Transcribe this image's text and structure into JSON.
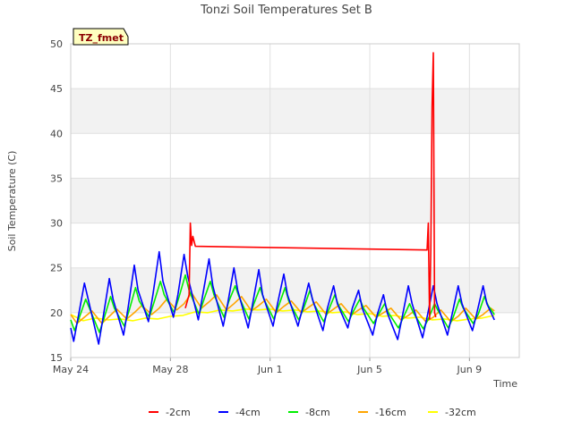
{
  "chart_data": {
    "type": "line",
    "title": "Tonzi Soil Temperatures Set B",
    "xlabel": "Time",
    "ylabel": "Soil Temperature (C)",
    "ylim": [
      15,
      50
    ],
    "yticks": [
      15,
      20,
      25,
      30,
      35,
      40,
      45,
      50
    ],
    "xlim": [
      "2024-05-24",
      "2024-06-11"
    ],
    "xticks": [
      {
        "label": "May 24",
        "day": 0
      },
      {
        "label": "May 28",
        "day": 4
      },
      {
        "label": "Jun 1",
        "day": 8
      },
      {
        "label": "Jun 5",
        "day": 12
      },
      {
        "label": "Jun 9",
        "day": 16
      }
    ],
    "x_range_days": [
      0,
      18
    ],
    "background_bands": true,
    "legend_position": "bottom",
    "site_label": "TZ_fmet",
    "series": [
      {
        "name": "-2cm",
        "color": "#ff0000",
        "x": [
          0,
          0.5,
          1.0,
          1.5,
          2.0,
          2.5,
          3.0,
          3.5,
          4.0,
          4.6,
          4.75,
          4.8,
          4.85,
          4.9,
          5.0,
          14.3,
          14.35,
          14.4,
          14.45,
          14.5,
          14.55,
          14.6,
          14.65
        ],
        "y": [
          null,
          null,
          null,
          null,
          null,
          null,
          null,
          null,
          null,
          20.5,
          22.0,
          30.0,
          27.5,
          28.5,
          27.4,
          27.0,
          30.0,
          19.3,
          27.0,
          43.0,
          49.0,
          20.0,
          19.5
        ]
      },
      {
        "name": "-4cm",
        "color": "#0000ff",
        "x": [
          0.0,
          0.12,
          0.3,
          0.55,
          0.7,
          1.12,
          1.3,
          1.55,
          1.7,
          2.12,
          2.3,
          2.55,
          2.7,
          3.12,
          3.3,
          3.55,
          3.7,
          4.12,
          4.3,
          4.55,
          4.7,
          5.12,
          5.3,
          5.55,
          5.7,
          6.12,
          6.3,
          6.55,
          6.7,
          7.12,
          7.3,
          7.55,
          7.7,
          8.12,
          8.3,
          8.55,
          8.7,
          9.12,
          9.3,
          9.55,
          9.7,
          10.12,
          10.3,
          10.55,
          10.7,
          11.12,
          11.3,
          11.55,
          11.7,
          12.12,
          12.3,
          12.55,
          12.7,
          13.12,
          13.3,
          13.55,
          13.7,
          14.12,
          14.3,
          14.55,
          14.7,
          15.12,
          15.3,
          15.55,
          15.7,
          16.12,
          16.3,
          16.55,
          16.7,
          17.0
        ],
        "y": [
          18.3,
          16.8,
          19.5,
          23.3,
          21.5,
          16.5,
          19.5,
          23.8,
          21.5,
          17.5,
          20.5,
          25.3,
          22.5,
          19.0,
          22.0,
          26.8,
          23.5,
          19.5,
          22.0,
          26.5,
          24.0,
          19.2,
          22.0,
          26.0,
          23.0,
          18.5,
          21.0,
          25.0,
          22.5,
          18.3,
          21.0,
          24.8,
          22.0,
          18.5,
          21.0,
          24.3,
          22.0,
          18.5,
          20.5,
          23.3,
          21.5,
          18.0,
          20.5,
          23.0,
          21.0,
          18.3,
          20.5,
          22.5,
          20.5,
          17.5,
          19.8,
          22.0,
          20.0,
          17.0,
          19.5,
          23.0,
          21.0,
          17.2,
          19.5,
          23.0,
          21.0,
          17.5,
          19.8,
          23.0,
          21.0,
          18.0,
          20.0,
          23.0,
          21.0,
          19.2
        ]
      },
      {
        "name": "-8cm",
        "color": "#00ee00",
        "x": [
          0.0,
          0.15,
          0.35,
          0.6,
          0.75,
          1.15,
          1.35,
          1.6,
          1.75,
          2.15,
          2.35,
          2.6,
          2.75,
          3.15,
          3.35,
          3.6,
          3.75,
          4.15,
          4.35,
          4.6,
          4.75,
          5.15,
          5.35,
          5.6,
          5.75,
          6.15,
          6.35,
          6.6,
          6.75,
          7.15,
          7.35,
          7.6,
          7.75,
          8.15,
          8.35,
          8.6,
          8.75,
          9.15,
          9.35,
          9.6,
          9.75,
          10.15,
          10.35,
          10.6,
          10.75,
          11.15,
          11.35,
          11.6,
          11.75,
          12.15,
          12.35,
          12.6,
          12.75,
          13.15,
          13.35,
          13.6,
          13.75,
          14.15,
          14.35,
          14.6,
          14.75,
          15.15,
          15.35,
          15.6,
          15.75,
          16.15,
          16.35,
          16.6,
          16.75,
          17.0
        ],
        "y": [
          19.2,
          18.0,
          19.5,
          21.5,
          20.5,
          17.8,
          19.5,
          21.8,
          20.5,
          18.5,
          20.3,
          22.8,
          21.3,
          19.5,
          21.2,
          23.5,
          22.0,
          20.0,
          21.8,
          24.2,
          22.5,
          19.8,
          21.5,
          23.5,
          22.0,
          19.5,
          21.3,
          23.0,
          21.8,
          19.3,
          21.0,
          22.8,
          21.5,
          19.3,
          20.8,
          22.8,
          21.3,
          19.2,
          20.5,
          22.5,
          21.0,
          19.0,
          20.3,
          22.0,
          20.8,
          19.0,
          20.2,
          21.5,
          20.5,
          18.8,
          19.8,
          21.0,
          20.0,
          18.3,
          19.5,
          21.0,
          20.0,
          18.2,
          19.3,
          21.0,
          20.2,
          18.3,
          19.5,
          21.5,
          20.5,
          18.8,
          19.8,
          21.8,
          20.8,
          19.8
        ]
      },
      {
        "name": "-16cm",
        "color": "#ffa500",
        "x": [
          0.0,
          0.25,
          0.55,
          0.85,
          1.25,
          1.55,
          1.85,
          2.25,
          2.55,
          2.85,
          3.25,
          3.55,
          3.85,
          4.25,
          4.55,
          4.85,
          5.25,
          5.55,
          5.85,
          6.25,
          6.55,
          6.85,
          7.25,
          7.55,
          7.85,
          8.25,
          8.55,
          8.85,
          9.25,
          9.55,
          9.85,
          10.25,
          10.55,
          10.85,
          11.25,
          11.55,
          11.85,
          12.25,
          12.55,
          12.85,
          13.25,
          13.55,
          13.85,
          14.25,
          14.55,
          14.85,
          15.25,
          15.55,
          15.85,
          16.25,
          16.55,
          16.85,
          17.0
        ],
        "y": [
          19.8,
          18.8,
          19.5,
          20.2,
          18.8,
          19.6,
          20.4,
          19.3,
          20.0,
          20.8,
          19.8,
          20.5,
          21.5,
          20.3,
          21.0,
          22.2,
          20.5,
          21.2,
          22.0,
          20.3,
          21.0,
          21.8,
          20.2,
          20.8,
          21.5,
          20.0,
          20.7,
          21.3,
          20.0,
          20.6,
          21.2,
          19.8,
          20.4,
          21.0,
          19.7,
          20.3,
          20.8,
          19.5,
          20.0,
          20.5,
          19.2,
          19.7,
          20.3,
          19.0,
          19.5,
          20.3,
          19.0,
          19.6,
          20.5,
          19.3,
          19.8,
          20.5,
          20.2
        ]
      },
      {
        "name": "-32cm",
        "color": "#ffff00",
        "x": [
          0.0,
          0.5,
          1.0,
          1.5,
          2.0,
          2.5,
          3.0,
          3.5,
          4.0,
          4.5,
          5.0,
          5.5,
          6.0,
          6.5,
          7.0,
          7.5,
          8.0,
          8.5,
          9.0,
          9.5,
          10.0,
          10.5,
          11.0,
          11.5,
          12.0,
          12.5,
          13.0,
          13.5,
          14.0,
          14.5,
          15.0,
          15.5,
          16.0,
          16.5,
          17.0
        ],
        "y": [
          19.8,
          19.1,
          19.4,
          19.2,
          19.3,
          19.1,
          19.4,
          19.3,
          19.6,
          19.7,
          20.1,
          20.0,
          20.3,
          20.2,
          20.4,
          20.3,
          20.4,
          20.2,
          20.3,
          20.1,
          20.2,
          20.0,
          20.1,
          19.8,
          19.9,
          19.6,
          19.7,
          19.4,
          19.5,
          19.2,
          19.3,
          19.1,
          19.3,
          19.4,
          19.7
        ]
      }
    ]
  }
}
